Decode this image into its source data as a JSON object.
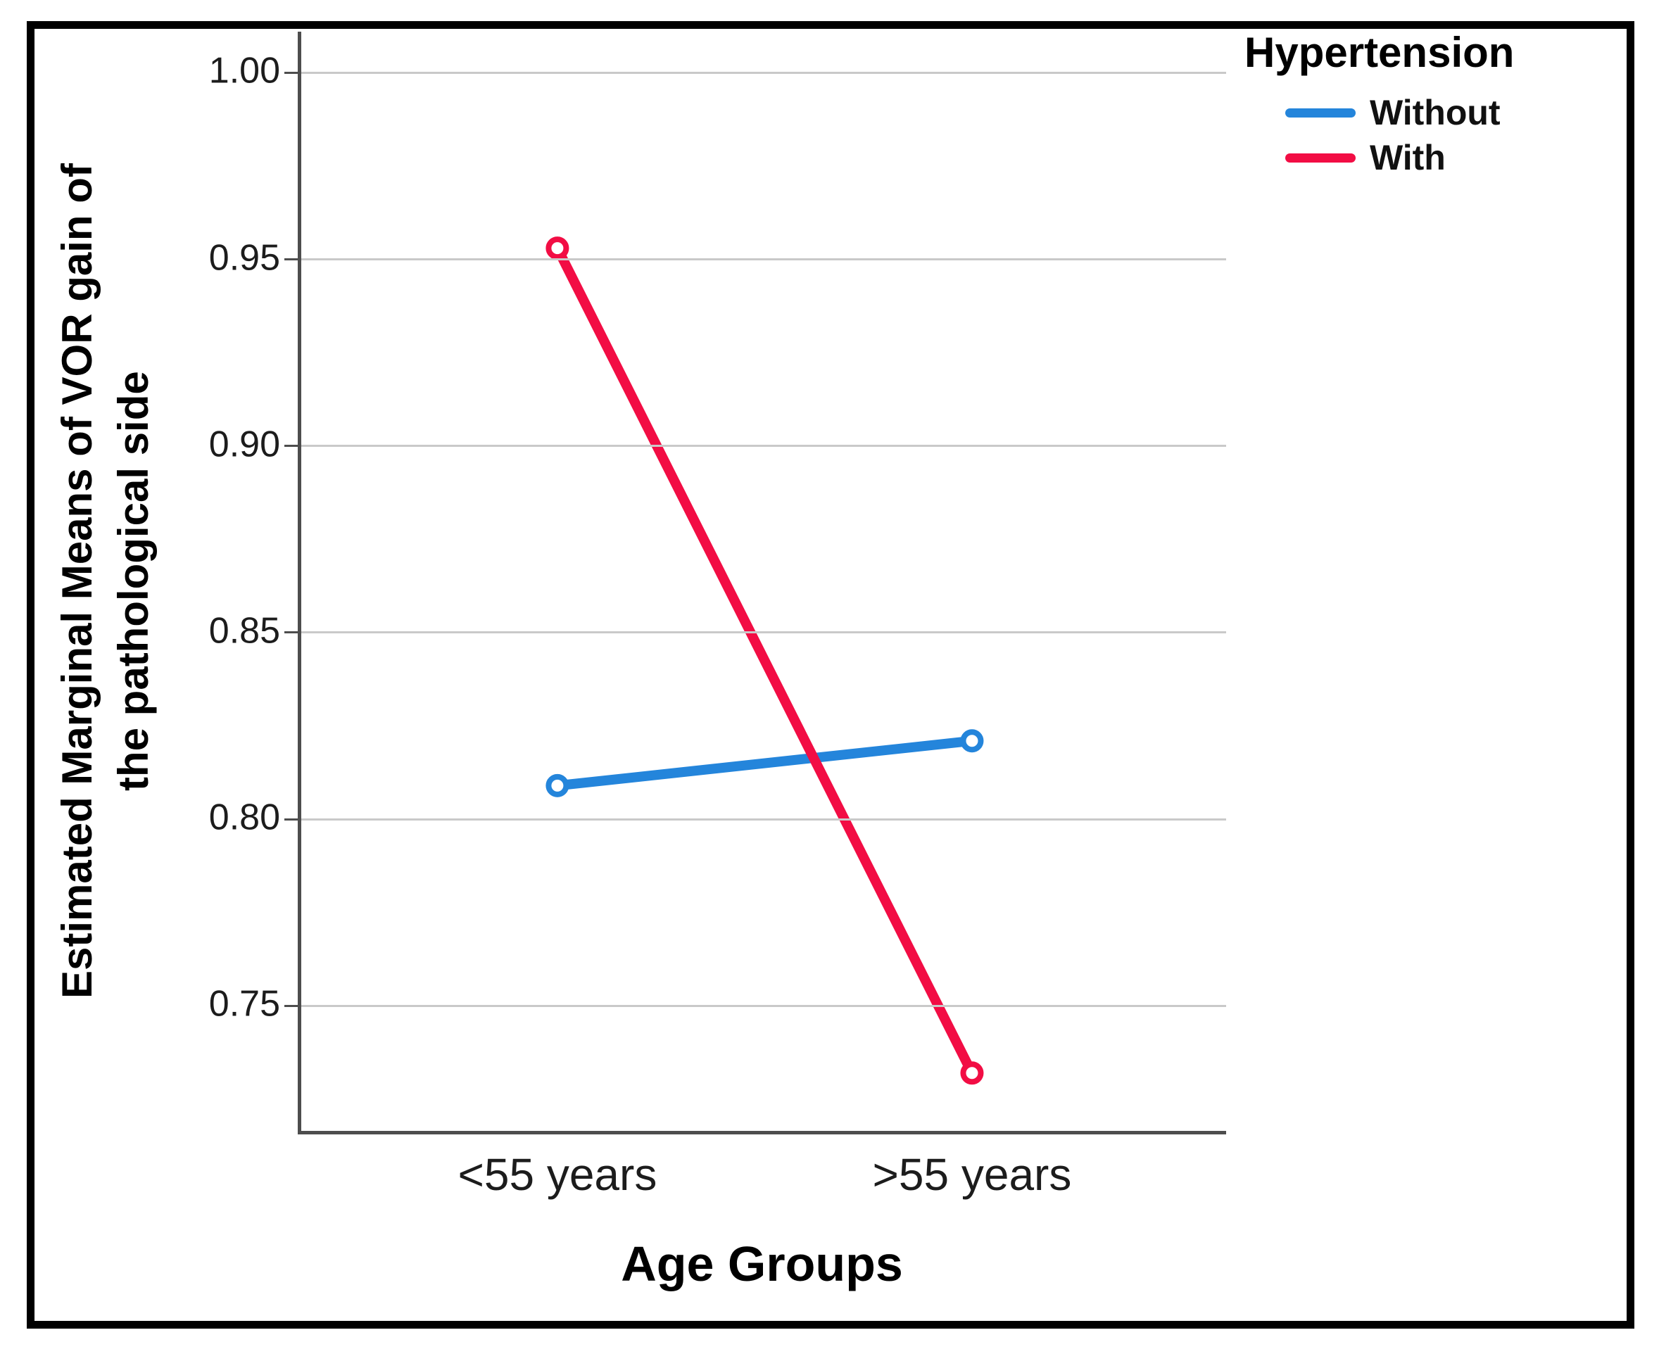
{
  "chart_data": {
    "type": "line",
    "title": "",
    "categories": [
      "<55 years",
      ">55 years"
    ],
    "series": [
      {
        "name": "Without",
        "color": "#2485DB",
        "values": [
          0.809,
          0.821
        ]
      },
      {
        "name": "With",
        "color": "#F20D44",
        "values": [
          0.953,
          0.732
        ]
      }
    ],
    "xlabel": "Age Groups",
    "ylabel": "Estimated Marginal Means of VOR gain of the pathological side",
    "ylabel_lines": [
      "Estimated Marginal Means of VOR gain of",
      "the pathological side"
    ],
    "yticks_labels": [
      "1.00",
      "0.95",
      "0.90",
      "0.85",
      "0.80",
      "0.75"
    ],
    "yticks_values": [
      1.0,
      0.95,
      0.9,
      0.85,
      0.8,
      0.75
    ],
    "ylim": [
      0.7165,
      1.011
    ],
    "grid": "horizontal gridlines on",
    "marker": "open-circle",
    "legend": {
      "title": "Hypertension",
      "position": "top-right",
      "entries": [
        "Without",
        "With"
      ]
    }
  }
}
